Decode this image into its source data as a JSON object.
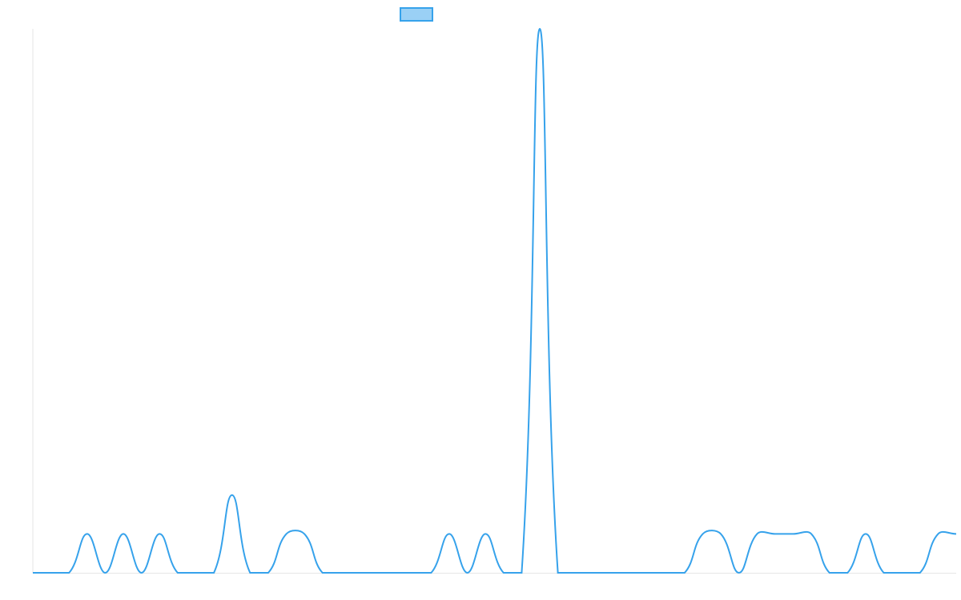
{
  "chart_data": {
    "type": "line",
    "categories": [
      null,
      null,
      null,
      null,
      null,
      null,
      null,
      null,
      null,
      null,
      null,
      null,
      null,
      null,
      null,
      null,
      null,
      null,
      null,
      null,
      null,
      null,
      null,
      null,
      null,
      null,
      null,
      null,
      null,
      null,
      null,
      null,
      null,
      null,
      null,
      null,
      null,
      null,
      null,
      null,
      null,
      null,
      null,
      null,
      null,
      null,
      null,
      null,
      null,
      null,
      null,
      null
    ],
    "series": [
      {
        "color": "#36a2eb",
        "values": [
          0,
          0,
          0,
          1,
          0,
          1,
          0,
          1,
          0,
          0,
          0,
          2,
          0,
          0,
          1,
          1,
          0,
          0,
          0,
          0,
          0,
          0,
          0,
          1,
          0,
          1,
          0,
          0,
          14,
          0,
          0,
          0,
          0,
          0,
          0,
          0,
          0,
          1,
          1,
          0,
          1,
          1,
          1,
          1,
          0,
          0,
          1,
          0,
          0,
          0,
          1,
          1
        ]
      }
    ],
    "ylim": [
      0,
      14
    ]
  }
}
